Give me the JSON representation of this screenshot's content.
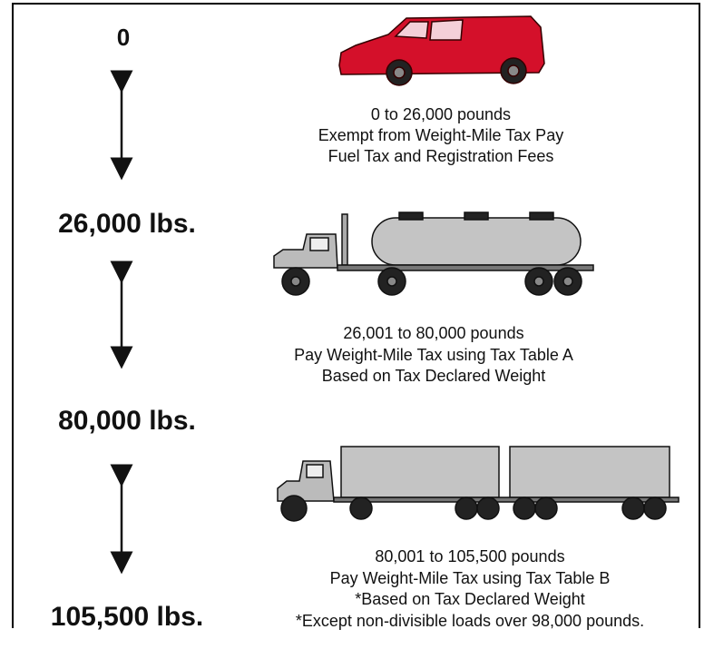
{
  "weights": [
    "0",
    "26,000 lbs.",
    "80,000 lbs.",
    "105,500 lbs."
  ],
  "tiers": [
    {
      "lines": [
        "0 to 26,000 pounds",
        "Exempt from Weight-Mile Tax Pay",
        "Fuel Tax and Registration Fees"
      ]
    },
    {
      "lines": [
        "26,001 to 80,000 pounds",
        "Pay Weight-Mile Tax using Tax Table A",
        "Based on Tax Declared Weight"
      ]
    },
    {
      "lines": [
        "80,001 to 105,500 pounds",
        "Pay Weight-Mile Tax using Tax Table B",
        "*Based on Tax Declared Weight",
        "*Except non-divisible loads over 98,000 pounds."
      ]
    }
  ]
}
